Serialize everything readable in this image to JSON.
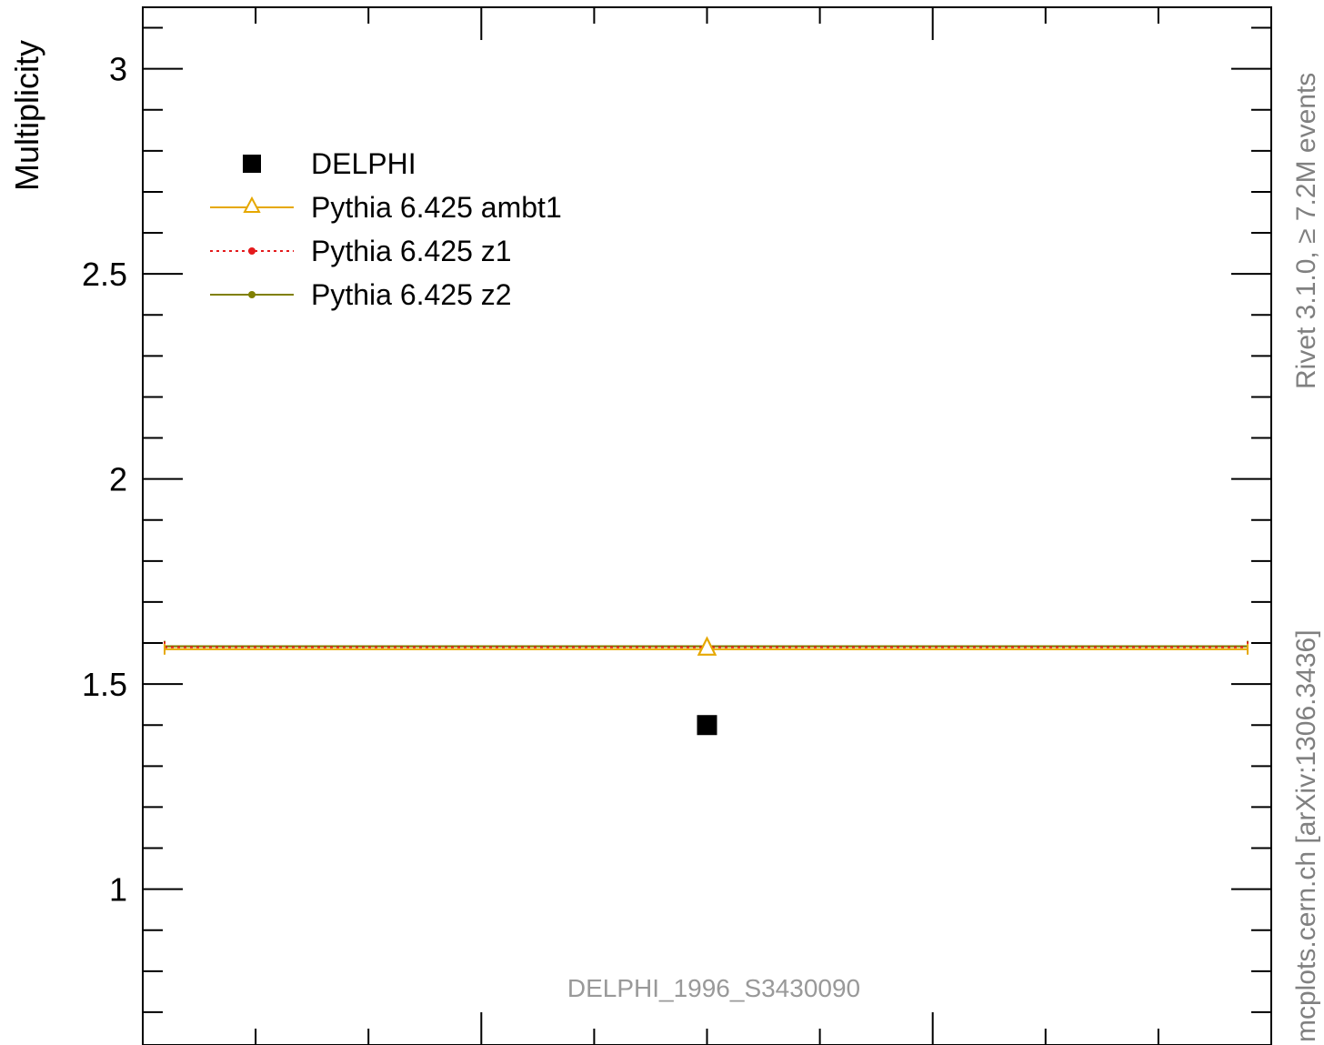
{
  "chart_data": {
    "type": "scatter",
    "title": "",
    "xlabel": "",
    "ylabel": "Multiplicity",
    "ylim": [
      0.62,
      3.15
    ],
    "xlim": [
      0,
      1
    ],
    "yticks": [
      {
        "value": 1,
        "label": "1"
      },
      {
        "value": 1.5,
        "label": "1.5"
      },
      {
        "value": 2,
        "label": "2"
      },
      {
        "value": 2.5,
        "label": "2.5"
      },
      {
        "value": 3,
        "label": "3"
      }
    ],
    "series": [
      {
        "name": "DELPHI",
        "marker": "square",
        "color": "#000000",
        "points": [
          {
            "x": 0.5,
            "y": 1.4
          }
        ]
      },
      {
        "name": "Pythia 6.425 ambt1",
        "marker": "triangle-open",
        "line": "solid",
        "color": "#e6a800",
        "points": [
          {
            "x": 0.5,
            "y": 1.585
          }
        ]
      },
      {
        "name": "Pythia 6.425 z1",
        "marker": "dot",
        "line": "dotted",
        "color": "#e41a1c",
        "points": [
          {
            "x": 0.5,
            "y": 1.59
          }
        ]
      },
      {
        "name": "Pythia 6.425 z2",
        "marker": "dot",
        "line": "solid",
        "color": "#808000",
        "points": [
          {
            "x": 0.5,
            "y": 1.592
          }
        ]
      }
    ],
    "legend_position": "top-left",
    "grid": false,
    "annotations": {
      "analysis_id": "DELPHI_1996_S3430090",
      "side_top": "Rivet 3.1.0, ≥ 7.2M events",
      "side_bottom": "mcplots.cern.ch [arXiv:1306.3436]"
    }
  }
}
